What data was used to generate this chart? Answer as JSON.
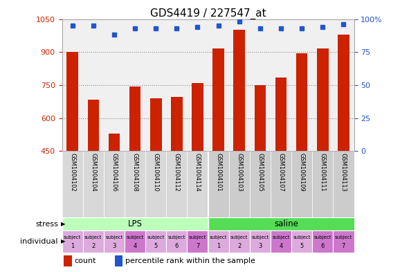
{
  "title": "GDS4419 / 227547_at",
  "samples": [
    "GSM1004102",
    "GSM1004104",
    "GSM1004106",
    "GSM1004108",
    "GSM1004110",
    "GSM1004112",
    "GSM1004114",
    "GSM1004101",
    "GSM1004103",
    "GSM1004105",
    "GSM1004107",
    "GSM1004109",
    "GSM1004111",
    "GSM1004113"
  ],
  "counts": [
    900,
    685,
    530,
    745,
    690,
    695,
    760,
    915,
    1000,
    750,
    785,
    895,
    915,
    980
  ],
  "percentiles": [
    95,
    95,
    88,
    93,
    93,
    93,
    94,
    95,
    98,
    93,
    93,
    93,
    94,
    96
  ],
  "ylim_left": [
    450,
    1050
  ],
  "ylim_right": [
    0,
    100
  ],
  "yticks_left": [
    450,
    600,
    750,
    900,
    1050
  ],
  "yticks_right": [
    0,
    25,
    50,
    75,
    100
  ],
  "ytick_right_labels": [
    "0",
    "25",
    "50",
    "75",
    "100%"
  ],
  "bar_color": "#cc2200",
  "dot_color": "#2255cc",
  "lps_color": "#bbffbb",
  "saline_color": "#55dd55",
  "cell_colors": [
    "#ddaadd",
    "#ddaadd",
    "#ddaadd",
    "#cc77cc",
    "#ddaadd",
    "#ddaadd",
    "#cc77cc",
    "#ddaadd",
    "#ddaadd",
    "#ddaadd",
    "#cc77cc",
    "#ddaadd",
    "#cc77cc",
    "#cc77cc"
  ],
  "subject_nums": [
    "1",
    "2",
    "3",
    "4",
    "5",
    "6",
    "7",
    "1",
    "2",
    "3",
    "4",
    "5",
    "6",
    "7"
  ],
  "label_bg": "#d0d0d0",
  "bg_color": "#ffffff",
  "grid_color": "#888888",
  "title_fontsize": 11,
  "grid_yticks": [
    600,
    750,
    900
  ]
}
